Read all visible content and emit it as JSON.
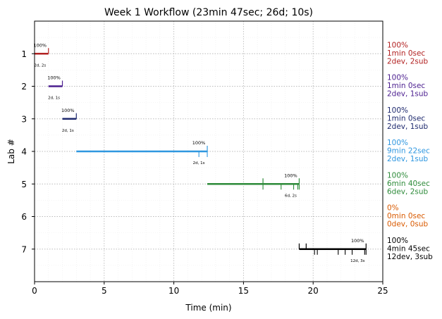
{
  "chart_data": {
    "type": "timeline",
    "title": "Week 1 Workflow (23min 47sec; 26d; 10s)",
    "xlabel": "Time (min)",
    "ylabel": "Lab #",
    "xlim": [
      0,
      25
    ],
    "ylim": [
      8,
      0
    ],
    "x_ticks": [
      "0",
      "5",
      "10",
      "15",
      "20",
      "25"
    ],
    "grid": true,
    "labs": [
      {
        "lab": "1",
        "color": "#b22222",
        "start": 0.0,
        "end": 1.0,
        "pct": "100%",
        "counts": "2d, 2s",
        "dev_ticks": [],
        "sub_ticks": [
          1.0
        ],
        "side": [
          "100%",
          "1min 0sec",
          "2dev, 2sub"
        ]
      },
      {
        "lab": "2",
        "color": "#4b1e8f",
        "start": 1.0,
        "end": 2.0,
        "pct": "100%",
        "counts": "2d, 1s",
        "dev_ticks": [],
        "sub_ticks": [
          2.0
        ],
        "side": [
          "100%",
          "1min 0sec",
          "2dev, 1sub"
        ]
      },
      {
        "lab": "3",
        "color": "#1f2a6e",
        "start": 2.0,
        "end": 3.0,
        "pct": "100%",
        "counts": "2d, 1s",
        "dev_ticks": [],
        "sub_ticks": [
          3.0
        ],
        "side": [
          "100%",
          "1min 0sec",
          "2dev, 1sub"
        ]
      },
      {
        "lab": "4",
        "color": "#2f97e0",
        "start": 3.0,
        "end": 12.4,
        "pct": "100%",
        "counts": "2d, 1s",
        "dev_ticks": [
          11.8,
          12.4
        ],
        "sub_ticks": [
          12.4
        ],
        "side": [
          "100%",
          "9min 22sec",
          "2dev, 1sub"
        ]
      },
      {
        "lab": "5",
        "color": "#2e8b3a",
        "start": 12.4,
        "end": 19.0,
        "pct": "100%",
        "counts": "6d, 2s",
        "dev_ticks": [
          16.4,
          17.7,
          18.6,
          18.9,
          19.0
        ],
        "sub_ticks": [
          16.4,
          19.0
        ],
        "side": [
          "100%",
          "6min 40sec",
          "6dev, 2sub"
        ]
      },
      {
        "lab": "6",
        "color": "#d95a00",
        "start": null,
        "end": null,
        "pct": "",
        "counts": "",
        "dev_ticks": [],
        "sub_ticks": [],
        "side": [
          "0%",
          "0min 0sec",
          "0dev, 0sub"
        ]
      },
      {
        "lab": "7",
        "color": "#000000",
        "start": 19.0,
        "end": 23.8,
        "pct": "100%",
        "counts": "12d, 3s",
        "dev_ticks": [
          20.1,
          20.3,
          21.8,
          22.3,
          22.8,
          23.7,
          23.8
        ],
        "sub_ticks": [
          19.0,
          19.5,
          23.8
        ],
        "side": [
          "100%",
          "4min 45sec",
          "12dev, 3sub"
        ]
      }
    ]
  }
}
